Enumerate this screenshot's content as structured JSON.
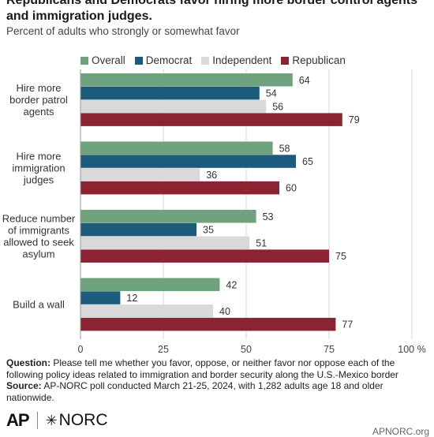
{
  "title": "Republicans and Democrats favor hiring more border control agents and immigration judges.",
  "subtitle": "Percent of adults who strongly or somewhat favor",
  "footer": {
    "question_label": "Question:",
    "question_text": "Please tell me whether you favor, oppose, or neither favor nor oppose each of the following policy ideas related to immigration and border security along the U.S.-Mexico border",
    "source_label": "Source:",
    "source_text": "AP-NORC poll conducted March 21-25, 2024, with 1,282 adults age 18 and older nationwide."
  },
  "logos": {
    "ap": "AP",
    "norc": "NORC",
    "site": "APNORC.org"
  },
  "chart_data": {
    "type": "bar",
    "orientation": "horizontal",
    "categories": [
      [
        "Hire more",
        "border patrol",
        "agents"
      ],
      [
        "Hire more",
        "immigration",
        "judges"
      ],
      [
        "Reduce number",
        "of immigrants",
        "allowed to seek",
        "asylum"
      ],
      [
        "Build a wall"
      ]
    ],
    "series": [
      {
        "name": "Overall",
        "color": "#6fa37e",
        "values": [
          64,
          58,
          53,
          42
        ]
      },
      {
        "name": "Democrat",
        "color": "#1d5b7c",
        "values": [
          54,
          65,
          35,
          12
        ]
      },
      {
        "name": "Independent",
        "color": "#d9d9d9",
        "values": [
          56,
          36,
          51,
          40
        ]
      },
      {
        "name": "Republican",
        "color": "#8c2332",
        "values": [
          79,
          60,
          75,
          77
        ]
      }
    ],
    "x_ticks": [
      "0",
      "25",
      "50",
      "75",
      "100 %"
    ],
    "xlim": [
      0,
      100
    ],
    "grid": true,
    "legend": "top"
  }
}
